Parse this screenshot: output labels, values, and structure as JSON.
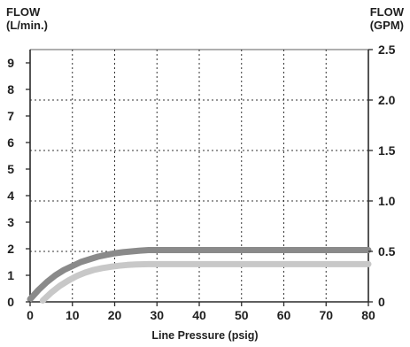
{
  "chart_data": {
    "type": "line",
    "xlabel": "Line Pressure (psig)",
    "ylabel_left": [
      "FLOW",
      "(L/min.)"
    ],
    "ylabel_right": [
      "FLOW",
      "(GPM)"
    ],
    "xlim": [
      0,
      80
    ],
    "ylim_left": [
      0,
      9.5
    ],
    "ylim_right": [
      0,
      2.5
    ],
    "x_ticks": [
      "0",
      "10",
      "20",
      "30",
      "40",
      "50",
      "60",
      "70",
      "80"
    ],
    "y_ticks_left": [
      "0",
      "1",
      "2",
      "3",
      "4",
      "5",
      "6",
      "7",
      "8",
      "9"
    ],
    "y_ticks_right": [
      "0",
      "0.5",
      "1.0",
      "1.5",
      "2.0",
      "2.5"
    ],
    "grid": true,
    "series": [
      {
        "color": "#8a8a8a",
        "x": [
          0,
          2,
          4,
          6,
          8,
          10,
          12,
          14,
          16,
          18,
          20,
          22,
          24,
          26,
          28,
          30,
          40,
          50,
          60,
          70,
          80
        ],
        "y": [
          0.1,
          0.45,
          0.75,
          1.0,
          1.2,
          1.35,
          1.5,
          1.6,
          1.7,
          1.77,
          1.83,
          1.87,
          1.9,
          1.93,
          1.95,
          1.95,
          1.95,
          1.95,
          1.95,
          1.95,
          1.95
        ]
      },
      {
        "color": "#c8c8c8",
        "x": [
          3,
          5,
          7,
          9,
          11,
          13,
          15,
          17,
          19,
          21,
          23,
          25,
          28,
          30,
          40,
          50,
          60,
          70,
          80
        ],
        "y": [
          0.05,
          0.35,
          0.6,
          0.8,
          0.97,
          1.1,
          1.2,
          1.27,
          1.32,
          1.36,
          1.39,
          1.41,
          1.42,
          1.42,
          1.42,
          1.42,
          1.42,
          1.42,
          1.42
        ]
      }
    ]
  }
}
